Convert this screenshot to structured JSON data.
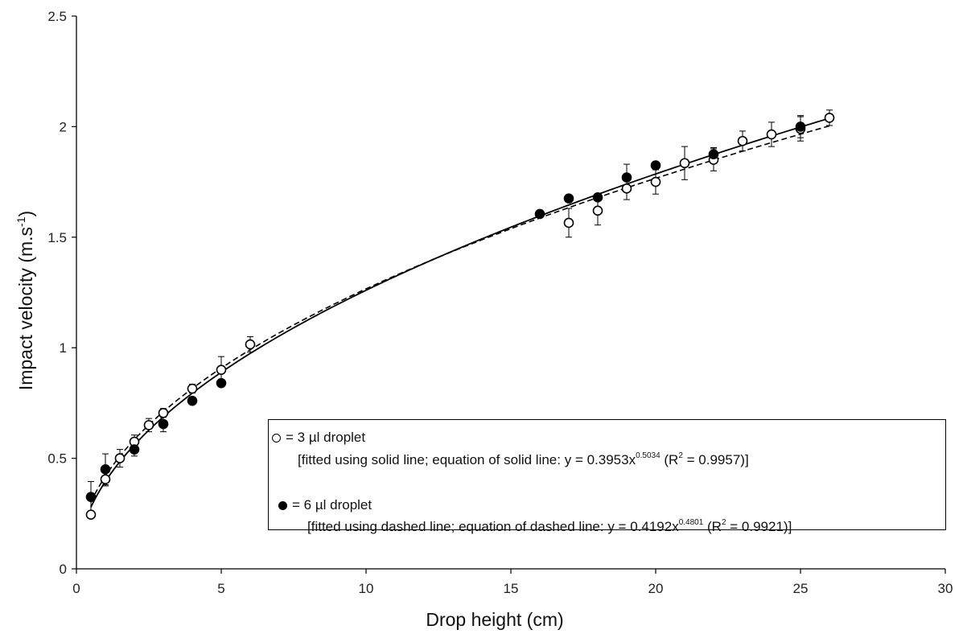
{
  "chart_data": {
    "type": "scatter",
    "title": "",
    "xlabel": "Drop height (cm)",
    "ylabel_main": "Impact velocity (m.s",
    "ylabel_sup": "-1",
    "ylabel_end": ")",
    "xlim": [
      0,
      30
    ],
    "ylim": [
      0,
      2.5
    ],
    "xticks": [
      "0",
      "5",
      "10",
      "15",
      "20",
      "25",
      "30"
    ],
    "yticks": [
      "0",
      "0.5",
      "1",
      "1.5",
      "2",
      "2.5"
    ],
    "grid": false,
    "legend_position": "bottom-right",
    "series": [
      {
        "name": "3 µl droplet",
        "marker": "open-circle",
        "fit_style": "solid",
        "fit_coef": 0.3953,
        "fit_exp": 0.5034,
        "points": [
          {
            "x": 0.5,
            "y": 0.245,
            "err": 0
          },
          {
            "x": 1,
            "y": 0.405,
            "err": 0.03
          },
          {
            "x": 1.5,
            "y": 0.5,
            "err": 0.04
          },
          {
            "x": 2,
            "y": 0.575,
            "err": 0.03
          },
          {
            "x": 2.5,
            "y": 0.65,
            "err": 0.03
          },
          {
            "x": 3,
            "y": 0.705,
            "err": 0.02
          },
          {
            "x": 4,
            "y": 0.815,
            "err": 0.02
          },
          {
            "x": 5,
            "y": 0.9,
            "err": 0.06
          },
          {
            "x": 6,
            "y": 1.015,
            "err": 0.035
          },
          {
            "x": 17,
            "y": 1.565,
            "err": 0.065
          },
          {
            "x": 18,
            "y": 1.62,
            "err": 0.065
          },
          {
            "x": 19,
            "y": 1.72,
            "err": 0.05
          },
          {
            "x": 20,
            "y": 1.75,
            "err": 0.055
          },
          {
            "x": 21,
            "y": 1.835,
            "err": 0.075
          },
          {
            "x": 22,
            "y": 1.85,
            "err": 0.05
          },
          {
            "x": 23,
            "y": 1.935,
            "err": 0.045
          },
          {
            "x": 24,
            "y": 1.965,
            "err": 0.055
          },
          {
            "x": 25,
            "y": 1.99,
            "err": 0.055
          },
          {
            "x": 26,
            "y": 2.04,
            "err": 0.035
          }
        ]
      },
      {
        "name": "6 µl droplet",
        "marker": "filled-circle",
        "fit_style": "dashed",
        "fit_coef": 0.4192,
        "fit_exp": 0.4801,
        "points": [
          {
            "x": 0.5,
            "y": 0.325,
            "err": 0.07
          },
          {
            "x": 1,
            "y": 0.45,
            "err": 0.07
          },
          {
            "x": 2,
            "y": 0.54,
            "err": 0.03
          },
          {
            "x": 3,
            "y": 0.655,
            "err": 0.035
          },
          {
            "x": 4,
            "y": 0.76,
            "err": 0
          },
          {
            "x": 5,
            "y": 0.84,
            "err": 0
          },
          {
            "x": 16,
            "y": 1.605,
            "err": 0
          },
          {
            "x": 17,
            "y": 1.675,
            "err": 0
          },
          {
            "x": 18,
            "y": 1.68,
            "err": 0
          },
          {
            "x": 19,
            "y": 1.77,
            "err": 0.06
          },
          {
            "x": 20,
            "y": 1.825,
            "err": 0
          },
          {
            "x": 22,
            "y": 1.875,
            "err": 0.03
          },
          {
            "x": 25,
            "y": 2.0,
            "err": 0.05
          }
        ]
      }
    ]
  },
  "legend": {
    "item1_label": "= 3 µl droplet",
    "item1_desc_pre": "[fitted using solid line; equation of solid line: y = 0.3953x",
    "item1_exp": "0.5034",
    "item1_desc_mid": " (R",
    "item1_r2sup": "2",
    "item1_desc_post": " = 0.9957)]",
    "item2_label": "=  6 µl droplet",
    "item2_desc_pre": "[fitted using dashed line; equation of dashed line: y = 0.4192x",
    "item2_exp": "0.4801",
    "item2_desc_mid": " (R",
    "item2_r2sup": "2",
    "item2_desc_post": " = 0.9921)]"
  }
}
